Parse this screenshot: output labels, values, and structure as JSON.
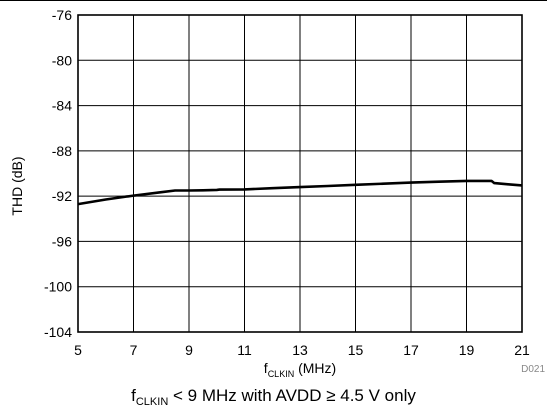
{
  "chart_data": {
    "type": "line",
    "xlabel_main": "f",
    "xlabel_sub": "CLKIN",
    "xlabel_unit": " (MHz)",
    "ylabel": "THD (dB)",
    "xlim": [
      5,
      21
    ],
    "ylim": [
      -104,
      -76
    ],
    "xticks": [
      "5",
      "7",
      "9",
      "11",
      "13",
      "15",
      "17",
      "19",
      "21"
    ],
    "yticks": [
      "-76",
      "-80",
      "-84",
      "-88",
      "-92",
      "-96",
      "-100",
      "-104"
    ],
    "grid": true,
    "figure_id": "D021",
    "series": [
      {
        "color": "#000000",
        "x": [
          5,
          6,
          7,
          8,
          8.5,
          9,
          9.5,
          10,
          10.1,
          11,
          12,
          13,
          14,
          15,
          16,
          17,
          18,
          19,
          19.5,
          19.9,
          20,
          20.5,
          21
        ],
        "y": [
          -92.7,
          -92.3,
          -91.95,
          -91.65,
          -91.5,
          -91.5,
          -91.48,
          -91.45,
          -91.42,
          -91.4,
          -91.3,
          -91.2,
          -91.1,
          -91.0,
          -90.9,
          -90.8,
          -90.72,
          -90.65,
          -90.65,
          -90.65,
          -90.85,
          -90.95,
          -91.05
        ]
      }
    ]
  },
  "caption": {
    "main": "f",
    "sub": "CLKIN",
    "rest": " < 9 MHz with AVDD ≥ 4.5 V only"
  }
}
